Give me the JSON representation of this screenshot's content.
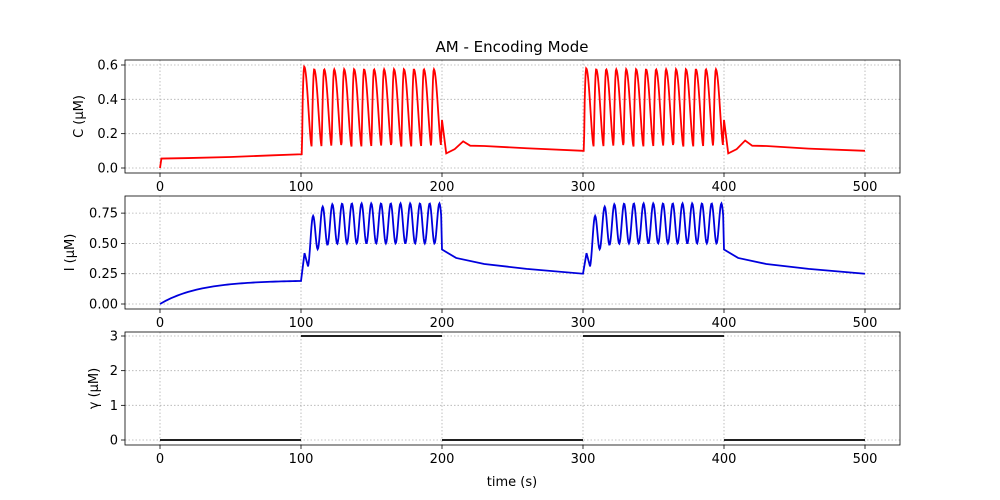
{
  "chart_data": {
    "type": "line",
    "title": "AM - Encoding Mode",
    "xlabel": "time (s)",
    "xlim": [
      0,
      500
    ],
    "x_ticks": [
      "0",
      "100",
      "200",
      "300",
      "400",
      "500"
    ],
    "grid": true,
    "panels": [
      {
        "ylabel": "C (μM)",
        "ylim": [
          0,
          0.6
        ],
        "y_ticks": [
          "0.0",
          "0.2",
          "0.4",
          "0.6"
        ],
        "color": "#ff0000",
        "series": {
          "baseline": [
            [
              0,
              0
            ],
            [
              1,
              0.055
            ],
            [
              20,
              0.058
            ],
            [
              50,
              0.064
            ],
            [
              80,
              0.074
            ],
            [
              100,
              0.08
            ]
          ],
          "oscillation_windows": [
            [
              101,
              199
            ],
            [
              301,
              399
            ]
          ],
          "oscillation_period": 6.9,
          "oscillation_peak": 0.575,
          "first_peak": 0.59,
          "oscillation_trough": 0.125,
          "recovery": [
            [
              200,
              0.28
            ],
            [
              203,
              0.085
            ],
            [
              209,
              0.11
            ],
            [
              215,
              0.155
            ],
            [
              220,
              0.13
            ],
            [
              230,
              0.128
            ],
            [
              260,
              0.115
            ],
            [
              300,
              0.1
            ]
          ],
          "recovery2": [
            [
              400,
              0.28
            ],
            [
              403,
              0.085
            ],
            [
              409,
              0.11
            ],
            [
              415,
              0.16
            ],
            [
              420,
              0.13
            ],
            [
              430,
              0.128
            ],
            [
              460,
              0.113
            ],
            [
              500,
              0.1
            ]
          ]
        }
      },
      {
        "ylabel": "I (μM)",
        "ylim": [
          0,
          0.85
        ],
        "y_ticks": [
          "0.00",
          "0.25",
          "0.50",
          "0.75"
        ],
        "color": "#0000dd",
        "series": {
          "rise_end": 0.19,
          "first_peak": 0.42,
          "first_trough": 0.31,
          "oscillation_windows": [
            [
              101,
              199
            ],
            [
              301,
              399
            ]
          ],
          "oscillation_period": 6.9,
          "oscillation_peak": 0.83,
          "oscillation_trough": 0.5,
          "decay": [
            [
              200,
              0.45
            ],
            [
              210,
              0.38
            ],
            [
              230,
              0.33
            ],
            [
              260,
              0.29
            ],
            [
              300,
              0.25
            ]
          ],
          "decay2": [
            [
              400,
              0.45
            ],
            [
              410,
              0.38
            ],
            [
              430,
              0.33
            ],
            [
              460,
              0.29
            ],
            [
              500,
              0.25
            ]
          ]
        }
      },
      {
        "ylabel": "γ (μM)",
        "ylim": [
          0,
          3
        ],
        "y_ticks": [
          "0",
          "1",
          "2",
          "3"
        ],
        "color": "#000000",
        "series": {
          "segments": [
            {
              "x": [
                0,
                100
              ],
              "y": 0
            },
            {
              "x": [
                100,
                200
              ],
              "y": 3
            },
            {
              "x": [
                200,
                300
              ],
              "y": 0
            },
            {
              "x": [
                300,
                400
              ],
              "y": 3
            },
            {
              "x": [
                400,
                500
              ],
              "y": 0
            }
          ]
        }
      }
    ]
  }
}
